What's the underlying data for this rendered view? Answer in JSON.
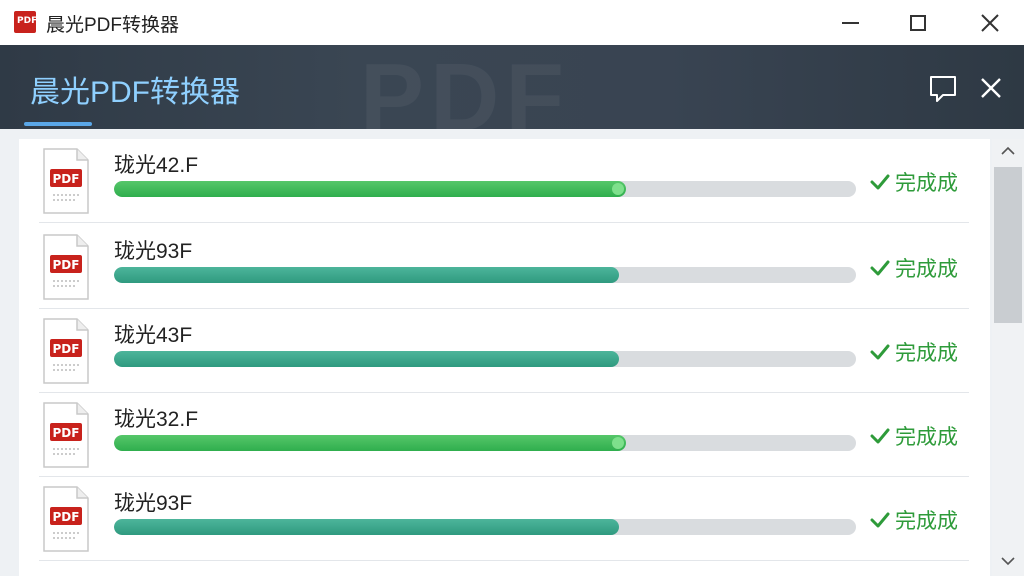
{
  "window": {
    "title": "晨光PDF转换器",
    "logo_text": "PDF",
    "controls": [
      "minimize-icon",
      "maximize-icon",
      "close-icon"
    ]
  },
  "header": {
    "title": "晨光PDF转换器",
    "accent_color": "#8fd0ff",
    "icons": [
      "feedback-icon",
      "close-icon"
    ]
  },
  "files": [
    {
      "name": "珑光42.F",
      "progress": 0.69,
      "status": "完成成",
      "bar_color": "green"
    },
    {
      "name": "珑光93F",
      "progress": 0.68,
      "status": "完成成",
      "bar_color": "teal"
    },
    {
      "name": "珑光43F",
      "progress": 0.68,
      "status": "完成成",
      "bar_color": "teal"
    },
    {
      "name": "珑光32.F",
      "progress": 0.69,
      "status": "完成成",
      "bar_color": "green"
    },
    {
      "name": "珑光93F",
      "progress": 0.68,
      "status": "完成成",
      "bar_color": "teal"
    }
  ],
  "pdf_icon_label": "PDF",
  "colors": {
    "status_green": "#2e9b3a",
    "pdf_red": "#c8221c",
    "header_bg": "#3a4653"
  }
}
